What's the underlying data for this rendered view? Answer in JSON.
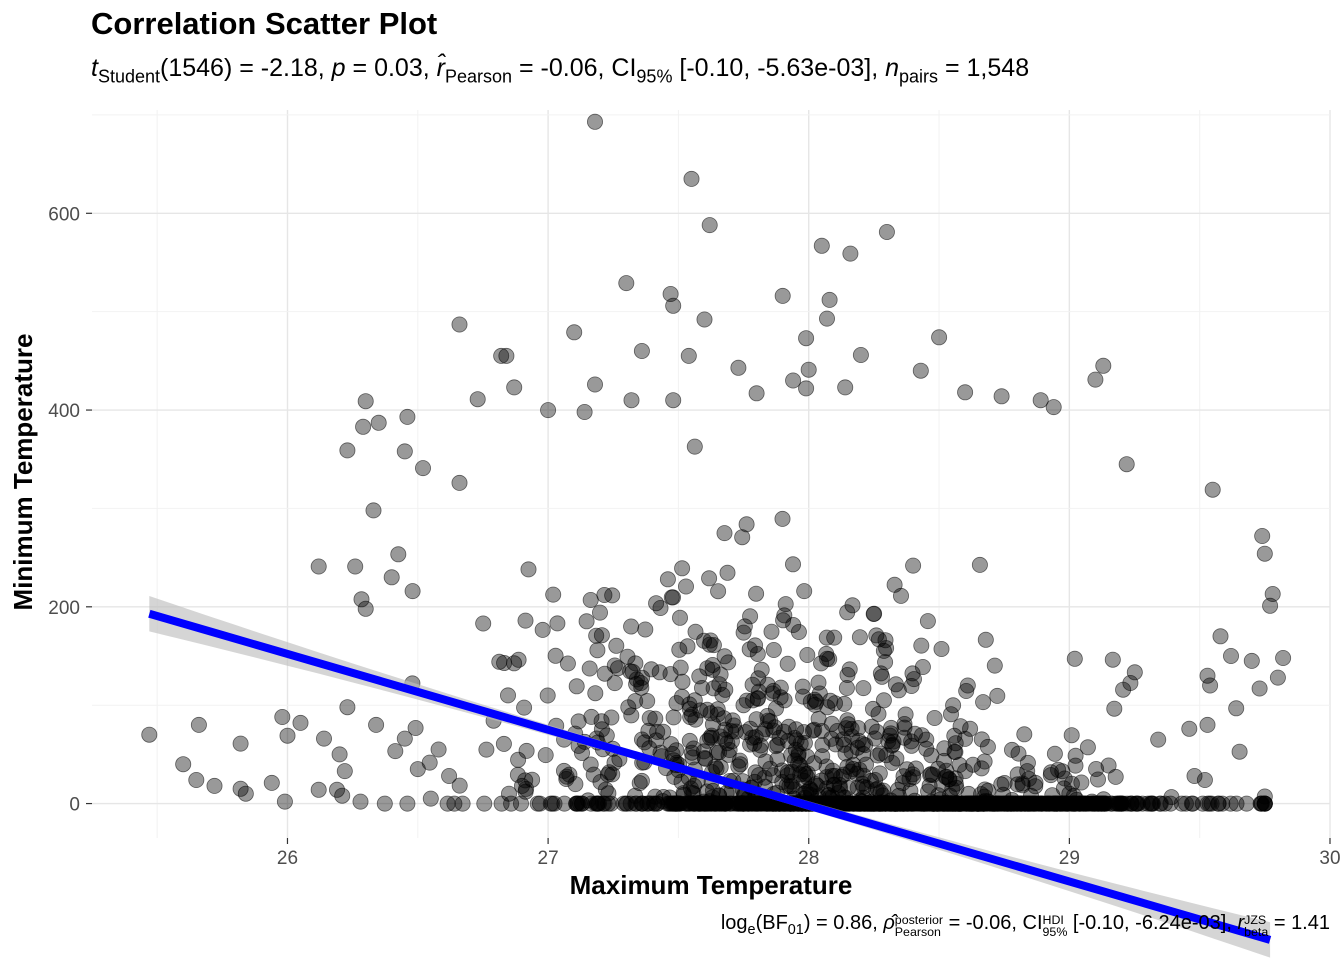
{
  "chart_data": {
    "type": "scatter",
    "title": "Correlation Scatter Plot",
    "subtitle": {
      "t_label": "t",
      "t_sub": "Student",
      "df": "(1546)",
      "t_value": "-2.18",
      "p_label": "p",
      "p_value": "0.03",
      "r_label": "r̂",
      "r_sub": "Pearson",
      "r_value": "-0.06",
      "ci_label": "CI",
      "ci_sub": "95%",
      "ci_value": "[-0.10, -5.63e-03]",
      "n_label": "n",
      "n_sub": "pairs",
      "n_value": "1,548"
    },
    "caption": {
      "log_label": "log",
      "log_sub": "e",
      "bf_label": "BF",
      "bf_sub": "01",
      "bf_value": "0.86",
      "rho_label": "ρ̂",
      "rho_sup": "posterior",
      "rho_sub": "Pearson",
      "rho_value": "-0.06",
      "ci_label": "CI",
      "ci_sup": "HDI",
      "ci_sub": "95%",
      "ci_value": "[-0.10, -6.24e-03]",
      "r_label": "r",
      "r_sup": "JZS",
      "r_sub": "beta",
      "r_value": "1.41"
    },
    "xlabel": "Maximum Temperature",
    "ylabel": "Minimum Temperature",
    "xlim": [
      25.25,
      30.0
    ],
    "ylim": [
      -35,
      705
    ],
    "x_ticks": [
      26,
      27,
      28,
      29,
      30
    ],
    "x_tick_labels": [
      "26",
      "27",
      "28",
      "29",
      "30"
    ],
    "y_ticks": [
      0,
      200,
      400,
      600
    ],
    "y_tick_labels": [
      "0",
      "200",
      "400",
      "600"
    ],
    "grid": true,
    "point_color": "#000000",
    "point_opacity": 0.4,
    "regression": {
      "x_range": [
        25.47,
        29.77
      ],
      "intercept": 2156.7,
      "slope": -77.1,
      "ci_halfwidth_ends": 18,
      "ci_halfwidth_center": 4,
      "line_color": "#0000ff",
      "band_color": "#bfbfbf"
    },
    "point_count": 1548,
    "points_sample": [
      [
        27.18,
        693
      ],
      [
        27.55,
        635
      ],
      [
        27.62,
        588
      ],
      [
        28.3,
        581
      ],
      [
        28.05,
        567
      ],
      [
        28.16,
        559
      ],
      [
        27.3,
        529
      ],
      [
        27.47,
        518
      ],
      [
        27.9,
        516
      ],
      [
        28.08,
        512
      ],
      [
        27.48,
        506
      ],
      [
        28.07,
        493
      ],
      [
        27.6,
        492
      ],
      [
        26.66,
        487
      ],
      [
        28.5,
        474
      ],
      [
        27.1,
        479
      ],
      [
        27.99,
        473
      ],
      [
        27.36,
        460
      ],
      [
        27.54,
        455
      ],
      [
        28.2,
        456
      ],
      [
        26.82,
        455
      ],
      [
        26.84,
        455
      ],
      [
        29.13,
        445
      ],
      [
        27.73,
        443
      ],
      [
        28.0,
        441
      ],
      [
        28.43,
        440
      ],
      [
        29.1,
        431
      ],
      [
        27.94,
        430
      ],
      [
        27.18,
        426
      ],
      [
        28.14,
        423
      ],
      [
        27.99,
        422
      ],
      [
        26.87,
        423
      ],
      [
        27.8,
        417
      ],
      [
        28.6,
        418
      ],
      [
        26.73,
        411
      ],
      [
        26.3,
        409
      ],
      [
        27.32,
        410
      ],
      [
        27.48,
        410
      ],
      [
        28.74,
        414
      ],
      [
        28.89,
        410
      ],
      [
        26.46,
        393
      ],
      [
        26.29,
        383
      ],
      [
        26.35,
        387
      ],
      [
        27.0,
        400
      ],
      [
        27.14,
        398
      ],
      [
        28.94,
        403
      ],
      [
        26.23,
        359
      ],
      [
        26.45,
        358
      ],
      [
        26.52,
        341
      ],
      [
        26.66,
        326
      ],
      [
        29.22,
        345
      ],
      [
        26.33,
        298
      ],
      [
        29.55,
        319
      ],
      [
        26.12,
        241
      ],
      [
        26.26,
        241
      ],
      [
        26.4,
        230
      ],
      [
        26.48,
        216
      ],
      [
        26.3,
        198
      ],
      [
        25.47,
        70
      ],
      [
        25.6,
        40
      ],
      [
        25.66,
        80
      ],
      [
        25.72,
        18
      ],
      [
        25.65,
        24
      ],
      [
        25.82,
        15
      ],
      [
        25.84,
        10
      ],
      [
        25.82,
        61
      ],
      [
        25.98,
        88
      ],
      [
        25.94,
        21
      ],
      [
        25.99,
        2
      ],
      [
        26.0,
        69
      ],
      [
        26.05,
        82
      ],
      [
        26.12,
        14
      ],
      [
        26.14,
        66
      ],
      [
        26.19,
        14
      ],
      [
        26.2,
        50
      ],
      [
        26.22,
        33
      ],
      [
        26.21,
        8
      ],
      [
        26.28,
        2
      ],
      [
        26.23,
        98
      ],
      [
        26.34,
        80
      ],
      [
        26.45,
        66
      ],
      [
        26.5,
        35
      ],
      [
        26.46,
        0
      ],
      [
        26.55,
        5
      ],
      [
        26.62,
        28
      ],
      [
        26.58,
        55
      ],
      [
        29.48,
        28
      ],
      [
        29.52,
        24
      ],
      [
        29.53,
        80
      ],
      [
        29.46,
        76
      ],
      [
        29.54,
        120
      ],
      [
        29.58,
        170
      ],
      [
        29.62,
        150
      ],
      [
        29.7,
        145
      ],
      [
        29.73,
        117
      ],
      [
        29.75,
        254
      ],
      [
        29.74,
        272
      ],
      [
        29.77,
        201
      ],
      [
        29.78,
        213
      ],
      [
        29.8,
        128
      ],
      [
        29.82,
        148
      ],
      [
        29.53,
        130
      ],
      [
        28.47,
        2
      ],
      [
        28.39,
        13
      ],
      [
        28.21,
        17
      ],
      [
        28.6,
        33
      ],
      [
        28.87,
        21
      ],
      [
        29.0,
        10
      ],
      [
        27.82,
        7
      ],
      [
        27.56,
        18
      ],
      [
        27.36,
        23
      ],
      [
        27.07,
        25
      ],
      [
        26.9,
        18
      ],
      [
        26.85,
        10
      ]
    ]
  }
}
